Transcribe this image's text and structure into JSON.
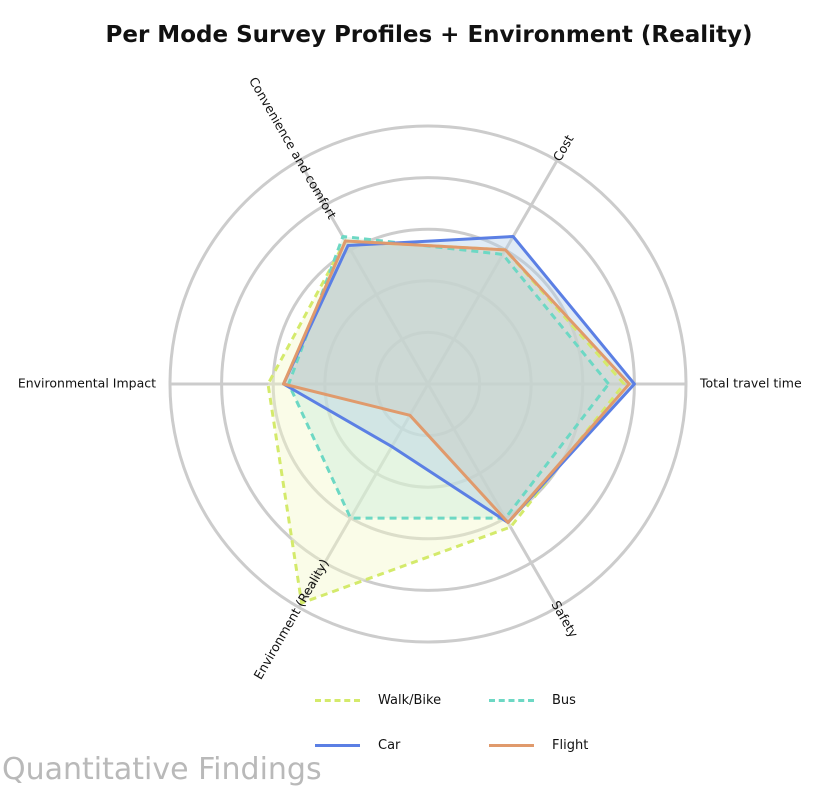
{
  "chart_data": {
    "type": "radar",
    "title": "Per Mode Survey Profiles + Environment (Reality)",
    "axes": [
      "Total travel time",
      "Cost",
      "Convenience and comfort",
      "Environmental Impact",
      "Environment (Reality)",
      "Safety"
    ],
    "rlim": [
      0,
      5
    ],
    "grid": true,
    "series": [
      {
        "name": "Walk/Bike",
        "style": "dashed",
        "color": "#d4ea6b",
        "fill": "#f4f9c8",
        "values": [
          3.8,
          3.0,
          3.2,
          3.1,
          4.9,
          3.2
        ]
      },
      {
        "name": "Bus",
        "style": "dashed",
        "color": "#6dd8c4",
        "fill": "#c7ecd9",
        "values": [
          3.5,
          2.9,
          3.3,
          2.7,
          3.0,
          3.0
        ]
      },
      {
        "name": "Car",
        "style": "solid",
        "color": "#5b7fe4",
        "fill": "#b5cfe6",
        "values": [
          4.0,
          3.3,
          3.1,
          2.8,
          1.4,
          3.1
        ]
      },
      {
        "name": "Flight",
        "style": "solid",
        "color": "#e09a6c",
        "fill": "#c9c9c0",
        "values": [
          3.9,
          3.0,
          3.2,
          2.8,
          0.7,
          3.1
        ]
      }
    ],
    "legend": "bottom-center"
  },
  "footer": {
    "text": "Quantitative Findings"
  }
}
